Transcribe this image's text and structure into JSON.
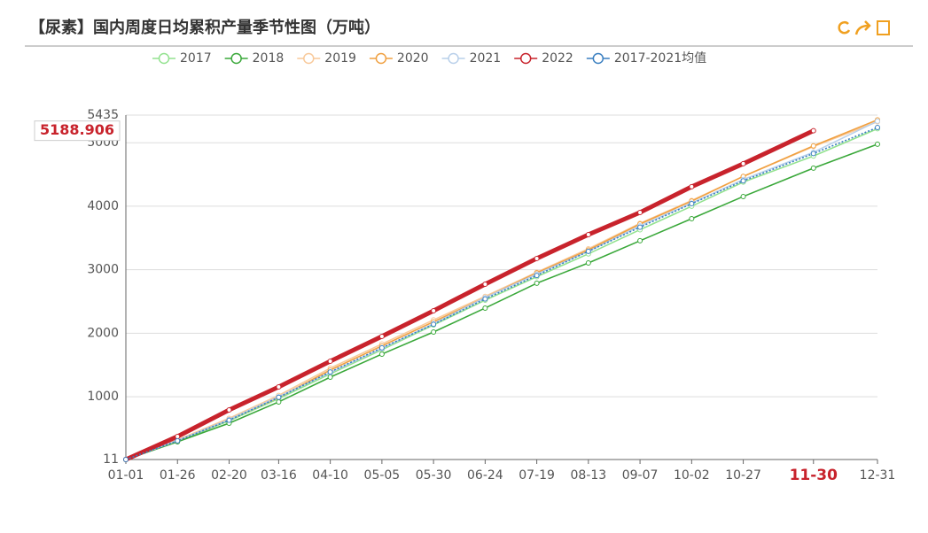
{
  "chart_data": {
    "type": "line",
    "title": "【尿素】国内周度日均累积产量季节性图（万吨）",
    "categories": [
      "01-01",
      "01-26",
      "02-20",
      "03-16",
      "04-10",
      "05-05",
      "05-30",
      "06-24",
      "07-19",
      "08-13",
      "09-07",
      "10-02",
      "10-27",
      "11-30",
      "12-31"
    ],
    "highlight_category": 13,
    "pointer_value": 5188.906,
    "series": [
      {
        "name": "2017",
        "color": "#93e28f",
        "values": [
          11,
          300,
          620,
          970,
          1360,
          1740,
          2130,
          2520,
          2890,
          3250,
          3630,
          4000,
          4380,
          4790,
          5220
        ]
      },
      {
        "name": "2018",
        "color": "#3aa83a",
        "values": [
          11,
          290,
          583,
          918,
          1308,
          1671,
          2019,
          2396,
          2787,
          3107,
          3456,
          3804,
          4153,
          4600,
          4976
        ]
      },
      {
        "name": "2019",
        "color": "#f8c99a",
        "values": [
          11,
          320,
          660,
          1020,
          1450,
          1830,
          2210,
          2580,
          2960,
          3330,
          3730,
          4090,
          4470,
          4940,
          5330
        ]
      },
      {
        "name": "2020",
        "color": "#f0a040",
        "values": [
          11,
          310,
          640,
          990,
          1420,
          1800,
          2180,
          2560,
          2950,
          3310,
          3720,
          4080,
          4470,
          4950,
          5360
        ]
      },
      {
        "name": "2021",
        "color": "#b9d0ea",
        "values": [
          11,
          310,
          640,
          1000,
          1380,
          1760,
          2150,
          2560,
          2930,
          3290,
          3690,
          4050,
          4420,
          4850,
          5340
        ]
      },
      {
        "name": "2022",
        "color": "#c8232c",
        "width": 5,
        "values": [
          11,
          374,
          792,
          1155,
          1559,
          1950,
          2354,
          2772,
          3177,
          3553,
          3902,
          4307,
          4669,
          5188.906,
          null
        ]
      },
      {
        "name": "2017-2021均值",
        "color": "#3a7fc0",
        "dashed": true,
        "values": [
          11,
          305,
          630,
          990,
          1390,
          1770,
          2140,
          2540,
          2910,
          3290,
          3670,
          4040,
          4400,
          4830,
          5240
        ]
      }
    ],
    "ylim": [
      11,
      5435
    ],
    "yticks": [
      11,
      1000,
      2000,
      3000,
      4000,
      5000,
      5435
    ],
    "grid": true
  }
}
